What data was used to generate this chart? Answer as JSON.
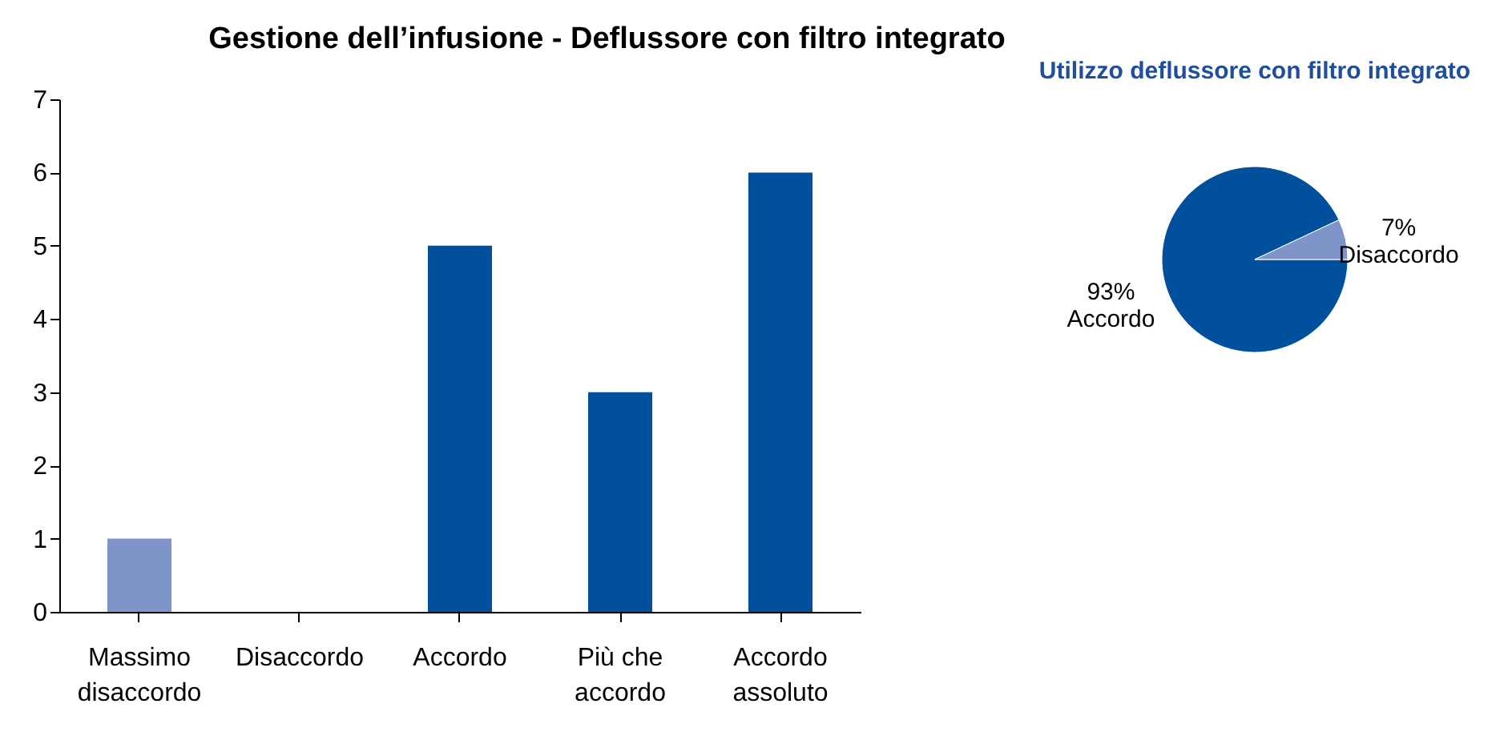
{
  "chart_data": [
    {
      "type": "bar",
      "title": "Gestione dell’infusione - Deflussore con filtro integrato",
      "categories": [
        "Massimo disaccordo",
        "Disaccordo",
        "Accordo",
        "Più che accordo",
        "Accordo assoluto"
      ],
      "values": [
        1,
        0,
        5,
        3,
        6
      ],
      "colors": [
        "#7f95c9",
        "#00509e",
        "#00509e",
        "#00509e",
        "#00509e"
      ],
      "ylim": [
        0,
        7
      ],
      "yticks": [
        0,
        1,
        2,
        3,
        4,
        5,
        6,
        7
      ],
      "grid": false
    },
    {
      "type": "pie",
      "title": "Utilizzo deflussore con filtro integrato",
      "categories": [
        "Accordo",
        "Disaccordo"
      ],
      "values": [
        93,
        7
      ],
      "value_labels": [
        "93%",
        "7%"
      ],
      "colors": [
        "#00509e",
        "#7f95c9"
      ]
    }
  ]
}
